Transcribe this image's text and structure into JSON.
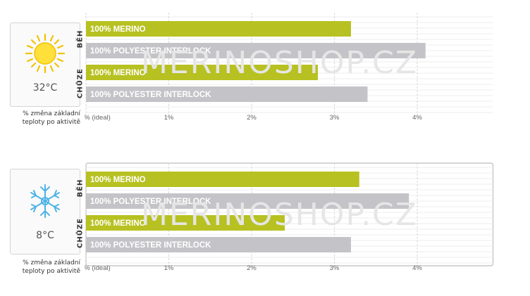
{
  "watermark": "MERINOSHOP.CZ",
  "note": "% změna základní teploty po aktivitě",
  "colors": {
    "merino": "#b7c121",
    "polyester": "#c4c4c8",
    "grid": "#d8d8d8"
  },
  "chart_data": [
    {
      "type": "bar",
      "temperature": "32°C",
      "icon": "sun-icon",
      "x_ticks": [
        "0% (ideal)",
        "1%",
        "2%",
        "3%",
        "4%"
      ],
      "xlim": [
        0,
        5
      ],
      "groups": [
        {
          "label": "BĚH",
          "bars": [
            {
              "label": "100% MERINO",
              "value": 3.2,
              "series": "merino"
            },
            {
              "label": "100% POLYESTER INTERLOCK",
              "value": 4.1,
              "series": "polyester"
            }
          ]
        },
        {
          "label": "CHŮZE",
          "bars": [
            {
              "label": "100% MERINO",
              "value": 2.8,
              "series": "merino"
            },
            {
              "label": "100% POLYESTER INTERLOCK",
              "value": 3.4,
              "series": "polyester"
            }
          ]
        }
      ]
    },
    {
      "type": "bar",
      "temperature": "8°C",
      "icon": "snowflake-icon",
      "x_ticks": [
        "0% (ideal)",
        "1%",
        "2%",
        "3%",
        "4%"
      ],
      "xlim": [
        0,
        5
      ],
      "groups": [
        {
          "label": "BĚH",
          "bars": [
            {
              "label": "100% MERINO",
              "value": 3.3,
              "series": "merino"
            },
            {
              "label": "100% POLYESTER INTERLOCK",
              "value": 3.9,
              "series": "polyester"
            }
          ]
        },
        {
          "label": "CHŮZE",
          "bars": [
            {
              "label": "100% MERINO",
              "value": 2.4,
              "series": "merino"
            },
            {
              "label": "100% POLYESTER INTERLOCK",
              "value": 3.2,
              "series": "polyester"
            }
          ]
        }
      ]
    }
  ]
}
